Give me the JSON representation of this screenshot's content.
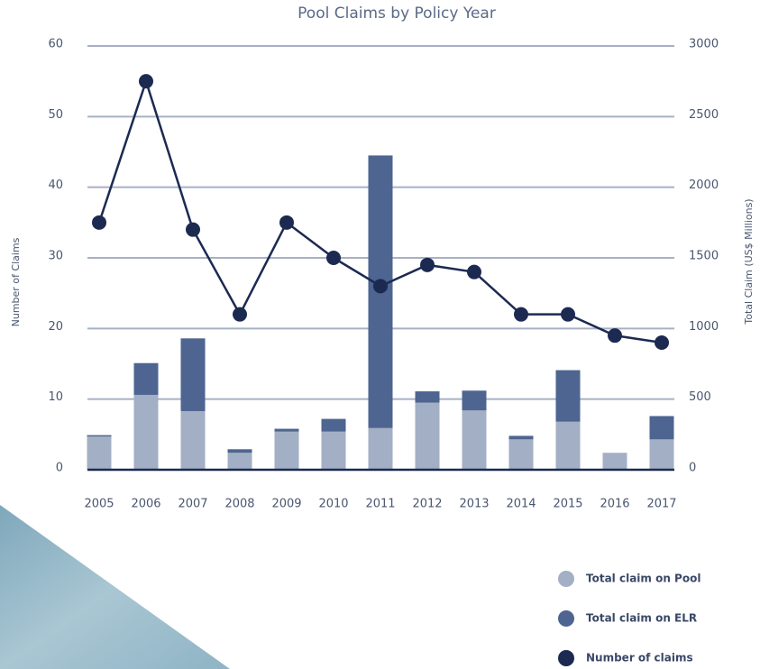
{
  "chart_data": {
    "type": "combo",
    "title": "Pool Claims by Policy Year",
    "y_label": "Number of Claims",
    "y2_label": "Total Claim (US$ Millions)",
    "categories": [
      "2005",
      "2006",
      "2007",
      "2008",
      "2009",
      "2010",
      "2011",
      "2012",
      "2013",
      "2014",
      "2015",
      "2016",
      "2017"
    ],
    "series": [
      {
        "name": "Total claim on Pool",
        "type": "bar",
        "axis": "y2",
        "color": "#a3afc4",
        "values": [
          235,
          530,
          415,
          120,
          270,
          270,
          295,
          475,
          420,
          215,
          340,
          120,
          215
        ]
      },
      {
        "name": "Total claim on ELR",
        "type": "bar",
        "axis": "y2",
        "color": "#4d6590",
        "values": [
          10,
          225,
          515,
          25,
          20,
          90,
          1930,
          80,
          140,
          25,
          365,
          0,
          165
        ]
      },
      {
        "name": "Number of claims",
        "type": "line",
        "axis": "y",
        "color": "#1c2a52",
        "values": [
          35,
          55,
          34,
          22,
          35,
          30,
          26,
          29,
          28,
          22,
          22,
          19,
          18
        ]
      }
    ],
    "ylim": [
      0,
      60
    ],
    "yticks": [
      0,
      10,
      20,
      30,
      40,
      50,
      60
    ],
    "y2lim": [
      0,
      3000
    ],
    "y2ticks": [
      0,
      500,
      1000,
      1500,
      2000,
      2500,
      3000
    ],
    "grid": true
  }
}
